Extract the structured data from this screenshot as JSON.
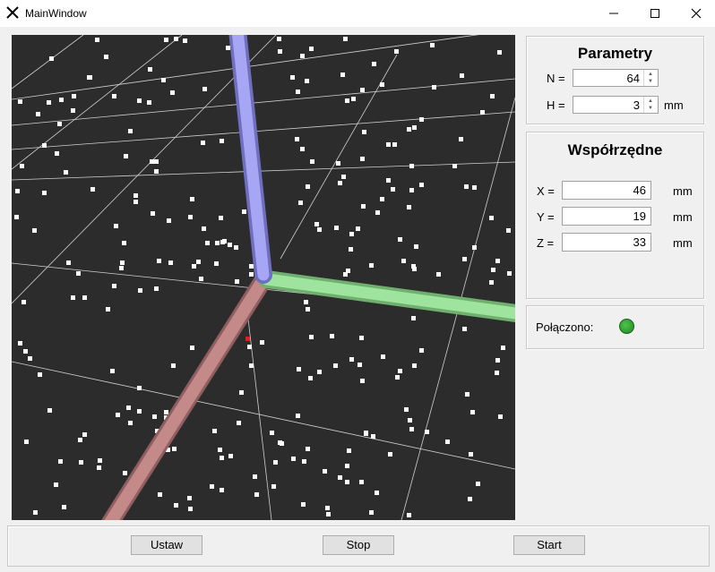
{
  "window": {
    "title": "MainWindow"
  },
  "params": {
    "title": "Parametry",
    "n_label": "N =",
    "n_value": "64",
    "h_label": "H =",
    "h_value": "3",
    "h_unit": "mm"
  },
  "coords": {
    "title": "Współrzędne",
    "x_label": "X =",
    "x_value": "46",
    "x_unit": "mm",
    "y_label": "Y =",
    "y_value": "19",
    "y_unit": "mm",
    "z_label": "Z =",
    "z_value": "33",
    "z_unit": "mm"
  },
  "status": {
    "label": "Połączono:",
    "indicator_color": "#2ea02e"
  },
  "buttons": {
    "set_label": "Ustaw",
    "stop_label": "Stop",
    "start_label": "Start"
  },
  "scene": {
    "background": "#2c2c2c",
    "axis_colors": {
      "x": "#c48a8a",
      "y": "#9ee39e",
      "z": "#9e9ef0"
    }
  }
}
